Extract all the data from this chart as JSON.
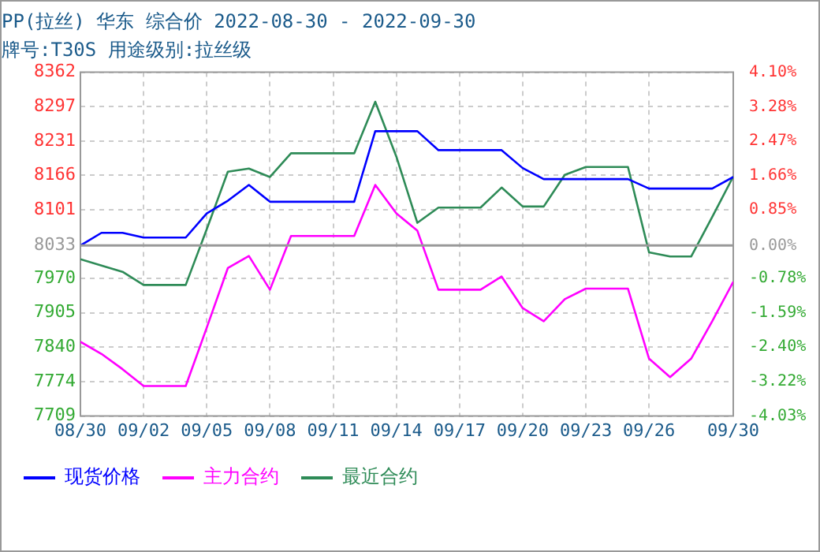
{
  "chart_data": {
    "type": "line",
    "title": "PP(拉丝) 华东 综合价 2022-08-30 - 2022-09-30",
    "subtitle": "牌号:T30S 用途级别:拉丝级",
    "x": [
      "2022-08-30",
      "2022-08-31",
      "2022-09-01",
      "2022-09-02",
      "2022-09-03",
      "2022-09-04",
      "2022-09-05",
      "2022-09-06",
      "2022-09-07",
      "2022-09-08",
      "2022-09-09",
      "2022-09-10",
      "2022-09-11",
      "2022-09-12",
      "2022-09-13",
      "2022-09-14",
      "2022-09-15",
      "2022-09-16",
      "2022-09-17",
      "2022-09-18",
      "2022-09-19",
      "2022-09-20",
      "2022-09-21",
      "2022-09-22",
      "2022-09-23",
      "2022-09-24",
      "2022-09-25",
      "2022-09-26",
      "2022-09-27",
      "2022-09-28",
      "2022-09-29",
      "2022-09-30"
    ],
    "series": [
      {
        "name": "现货价格",
        "color": "#0000ff",
        "values": [
          8033,
          8057,
          8057,
          8048,
          8048,
          8048,
          8094,
          8118,
          8148,
          8116,
          8116,
          8116,
          8116,
          8116,
          8250,
          8250,
          8250,
          8214,
          8214,
          8214,
          8214,
          8180,
          8159,
          8159,
          8159,
          8159,
          8159,
          8141,
          8141,
          8141,
          8141,
          8163
        ]
      },
      {
        "name": "主力合约",
        "color": "#ff00ff",
        "values": [
          7850,
          7827,
          7798,
          7766,
          7766,
          7766,
          7877,
          7990,
          8013,
          7949,
          8051,
          8051,
          8051,
          8051,
          8148,
          8094,
          8061,
          7949,
          7949,
          7949,
          7974,
          7914,
          7889,
          7931,
          7951,
          7951,
          7951,
          7818,
          7783,
          7818,
          7889,
          7964
        ]
      },
      {
        "name": "最近合约",
        "color": "#2e8b57",
        "values": [
          8007,
          7995,
          7983,
          7958,
          7958,
          7958,
          8064,
          8173,
          8179,
          8163,
          8208,
          8208,
          8208,
          8208,
          8306,
          8202,
          8076,
          8105,
          8105,
          8105,
          8143,
          8107,
          8107,
          8167,
          8182,
          8182,
          8182,
          8020,
          8012,
          8012,
          8087,
          8164
        ]
      }
    ],
    "xlim": [
      "2022-08-30",
      "2022-09-30"
    ],
    "xticks": [
      {
        "value": "2022-08-30",
        "label": "08/30"
      },
      {
        "value": "2022-09-02",
        "label": "09/02"
      },
      {
        "value": "2022-09-05",
        "label": "09/05"
      },
      {
        "value": "2022-09-08",
        "label": "09/08"
      },
      {
        "value": "2022-09-11",
        "label": "09/11"
      },
      {
        "value": "2022-09-14",
        "label": "09/14"
      },
      {
        "value": "2022-09-17",
        "label": "09/17"
      },
      {
        "value": "2022-09-20",
        "label": "09/20"
      },
      {
        "value": "2022-09-23",
        "label": "09/23"
      },
      {
        "value": "2022-09-26",
        "label": "09/26"
      },
      {
        "value": "2022-09-30",
        "label": "09/30"
      }
    ],
    "ylim": [
      7709,
      8362
    ],
    "yticks": [
      7709,
      7774,
      7840,
      7905,
      7970,
      8033,
      8101,
      8166,
      8231,
      8297,
      8362
    ],
    "y2lim": [
      -4.03,
      4.1
    ],
    "y2ticks": [
      {
        "value": -4.03,
        "label": "-4.03%"
      },
      {
        "value": -3.22,
        "label": "-3.22%"
      },
      {
        "value": -2.4,
        "label": "-2.40%"
      },
      {
        "value": -1.59,
        "label": "-1.59%"
      },
      {
        "value": -0.78,
        "label": "-0.78%"
      },
      {
        "value": 0,
        "label": "0.00%"
      },
      {
        "value": 0.85,
        "label": "0.85%"
      },
      {
        "value": 1.66,
        "label": "1.66%"
      },
      {
        "value": 2.47,
        "label": "2.47%"
      },
      {
        "value": 3.28,
        "label": "3.28%"
      },
      {
        "value": 4.1,
        "label": "4.10%"
      }
    ],
    "ref_lines": [
      {
        "axis": "y",
        "value": 8033,
        "color": "#999999"
      }
    ],
    "grid": true,
    "legend": "bottom",
    "marker": "none",
    "line_style": "solid"
  }
}
